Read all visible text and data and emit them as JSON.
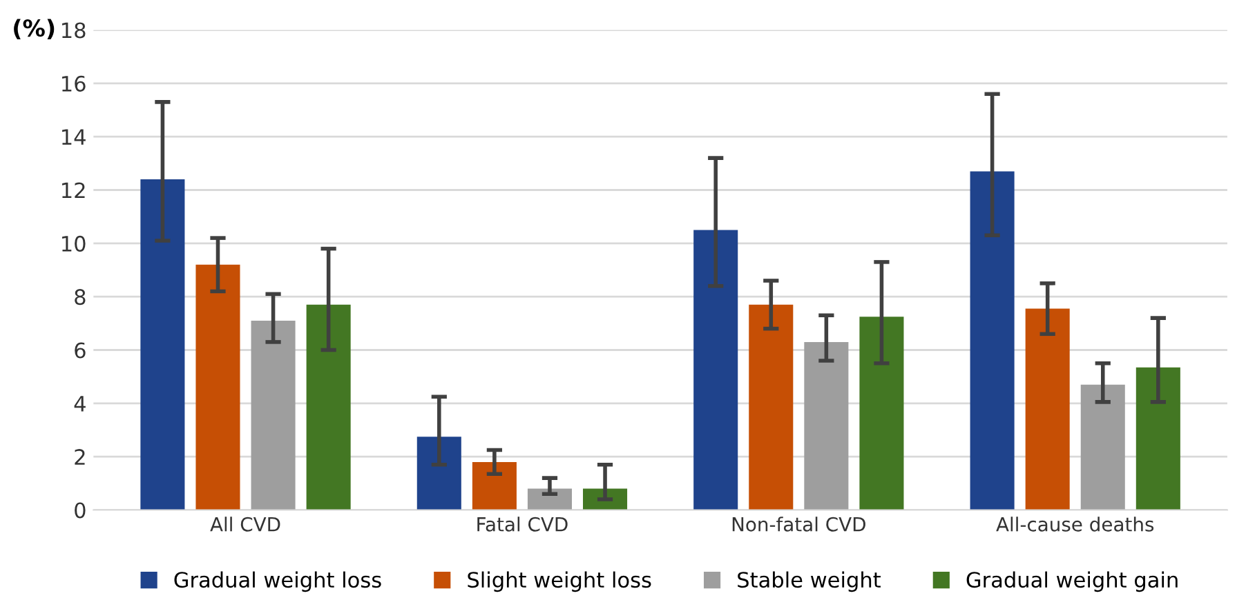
{
  "chart_data": {
    "type": "bar",
    "ylabel": "(%)",
    "categories": [
      "All CVD",
      "Fatal CVD",
      "Non-fatal CVD",
      "All-cause deaths"
    ],
    "series": [
      {
        "name": "Gradual weight loss",
        "color": "#1f438c",
        "values": [
          12.4,
          2.75,
          10.5,
          12.7
        ],
        "errors": [
          [
            10.1,
            15.3
          ],
          [
            1.7,
            4.25
          ],
          [
            8.4,
            13.2
          ],
          [
            10.3,
            15.6
          ]
        ]
      },
      {
        "name": "Slight weight loss",
        "color": "#c64f05",
        "values": [
          9.2,
          1.8,
          7.7,
          7.55
        ],
        "errors": [
          [
            8.2,
            10.2
          ],
          [
            1.35,
            2.25
          ],
          [
            6.8,
            8.6
          ],
          [
            6.6,
            8.5
          ]
        ]
      },
      {
        "name": "Stable weight",
        "color": "#9e9e9e",
        "values": [
          7.1,
          0.8,
          6.3,
          4.7
        ],
        "errors": [
          [
            6.3,
            8.1
          ],
          [
            0.6,
            1.2
          ],
          [
            5.6,
            7.3
          ],
          [
            4.05,
            5.5
          ]
        ]
      },
      {
        "name": "Gradual weight gain",
        "color": "#437723",
        "values": [
          7.7,
          0.8,
          7.25,
          5.35
        ],
        "errors": [
          [
            6.0,
            9.8
          ],
          [
            0.4,
            1.7
          ],
          [
            5.5,
            9.3
          ],
          [
            4.05,
            7.2
          ]
        ]
      }
    ],
    "ylim": [
      0,
      18
    ],
    "yticks": [
      0,
      2,
      4,
      6,
      8,
      10,
      12,
      14,
      16,
      18
    ],
    "grid": "y",
    "legend": "bottom"
  }
}
